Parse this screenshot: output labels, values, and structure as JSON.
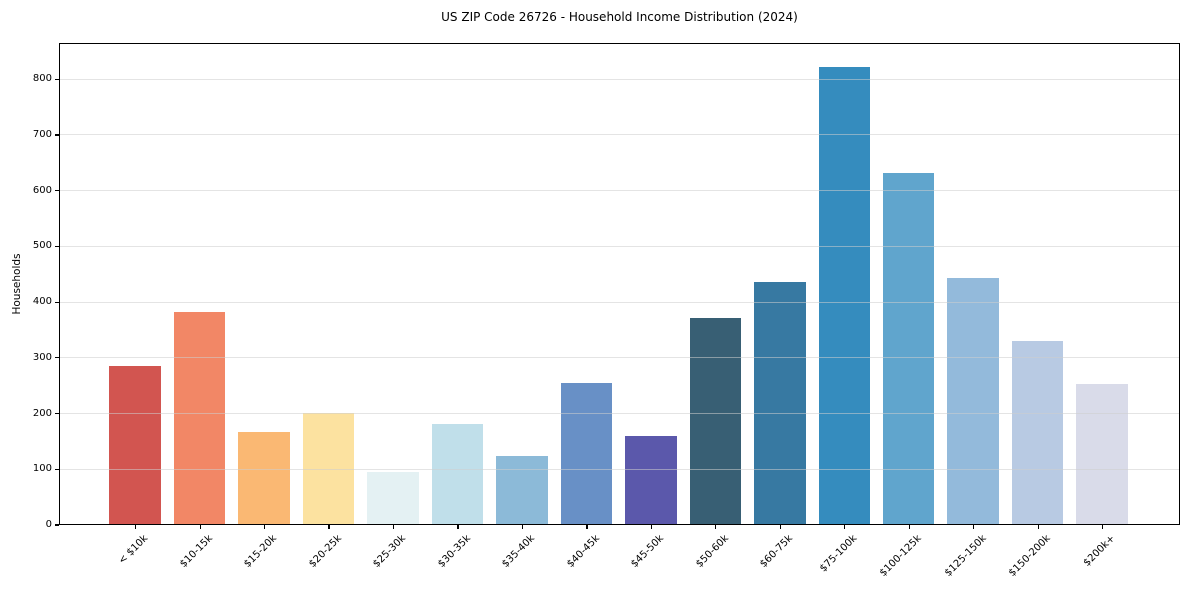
{
  "chart_data": {
    "type": "bar",
    "title": "US ZIP Code 26726 - Household Income Distribution (2024)",
    "ylabel": "Households",
    "xlabel": "",
    "categories": [
      "< $10k",
      "$10-15k",
      "$15-20k",
      "$20-25k",
      "$25-30k",
      "$30-35k",
      "$35-40k",
      "$40-45k",
      "$45-50k",
      "$50-60k",
      "$60-75k",
      "$75-100k",
      "$100-125k",
      "$125-150k",
      "$150-200k",
      "$200k+"
    ],
    "values": [
      283,
      380,
      165,
      200,
      93,
      180,
      123,
      253,
      158,
      370,
      435,
      820,
      630,
      442,
      328,
      252
    ],
    "bar_colors": [
      "#d25550",
      "#f28766",
      "#fab873",
      "#fce2a0",
      "#e4f1f3",
      "#c0dfea",
      "#8cbad8",
      "#6890c6",
      "#5b58ab",
      "#385f74",
      "#3779a2",
      "#358cbe",
      "#60a5cd",
      "#93badb",
      "#b8cae3",
      "#d9dbe9"
    ],
    "yticks": [
      0,
      100,
      200,
      300,
      400,
      500,
      600,
      700,
      800
    ],
    "ylim": [
      0,
      865
    ],
    "grid": "horizontal-lines-over-bars",
    "legend": "none",
    "frame_color": "#000000",
    "background_color": "#ffffff"
  }
}
